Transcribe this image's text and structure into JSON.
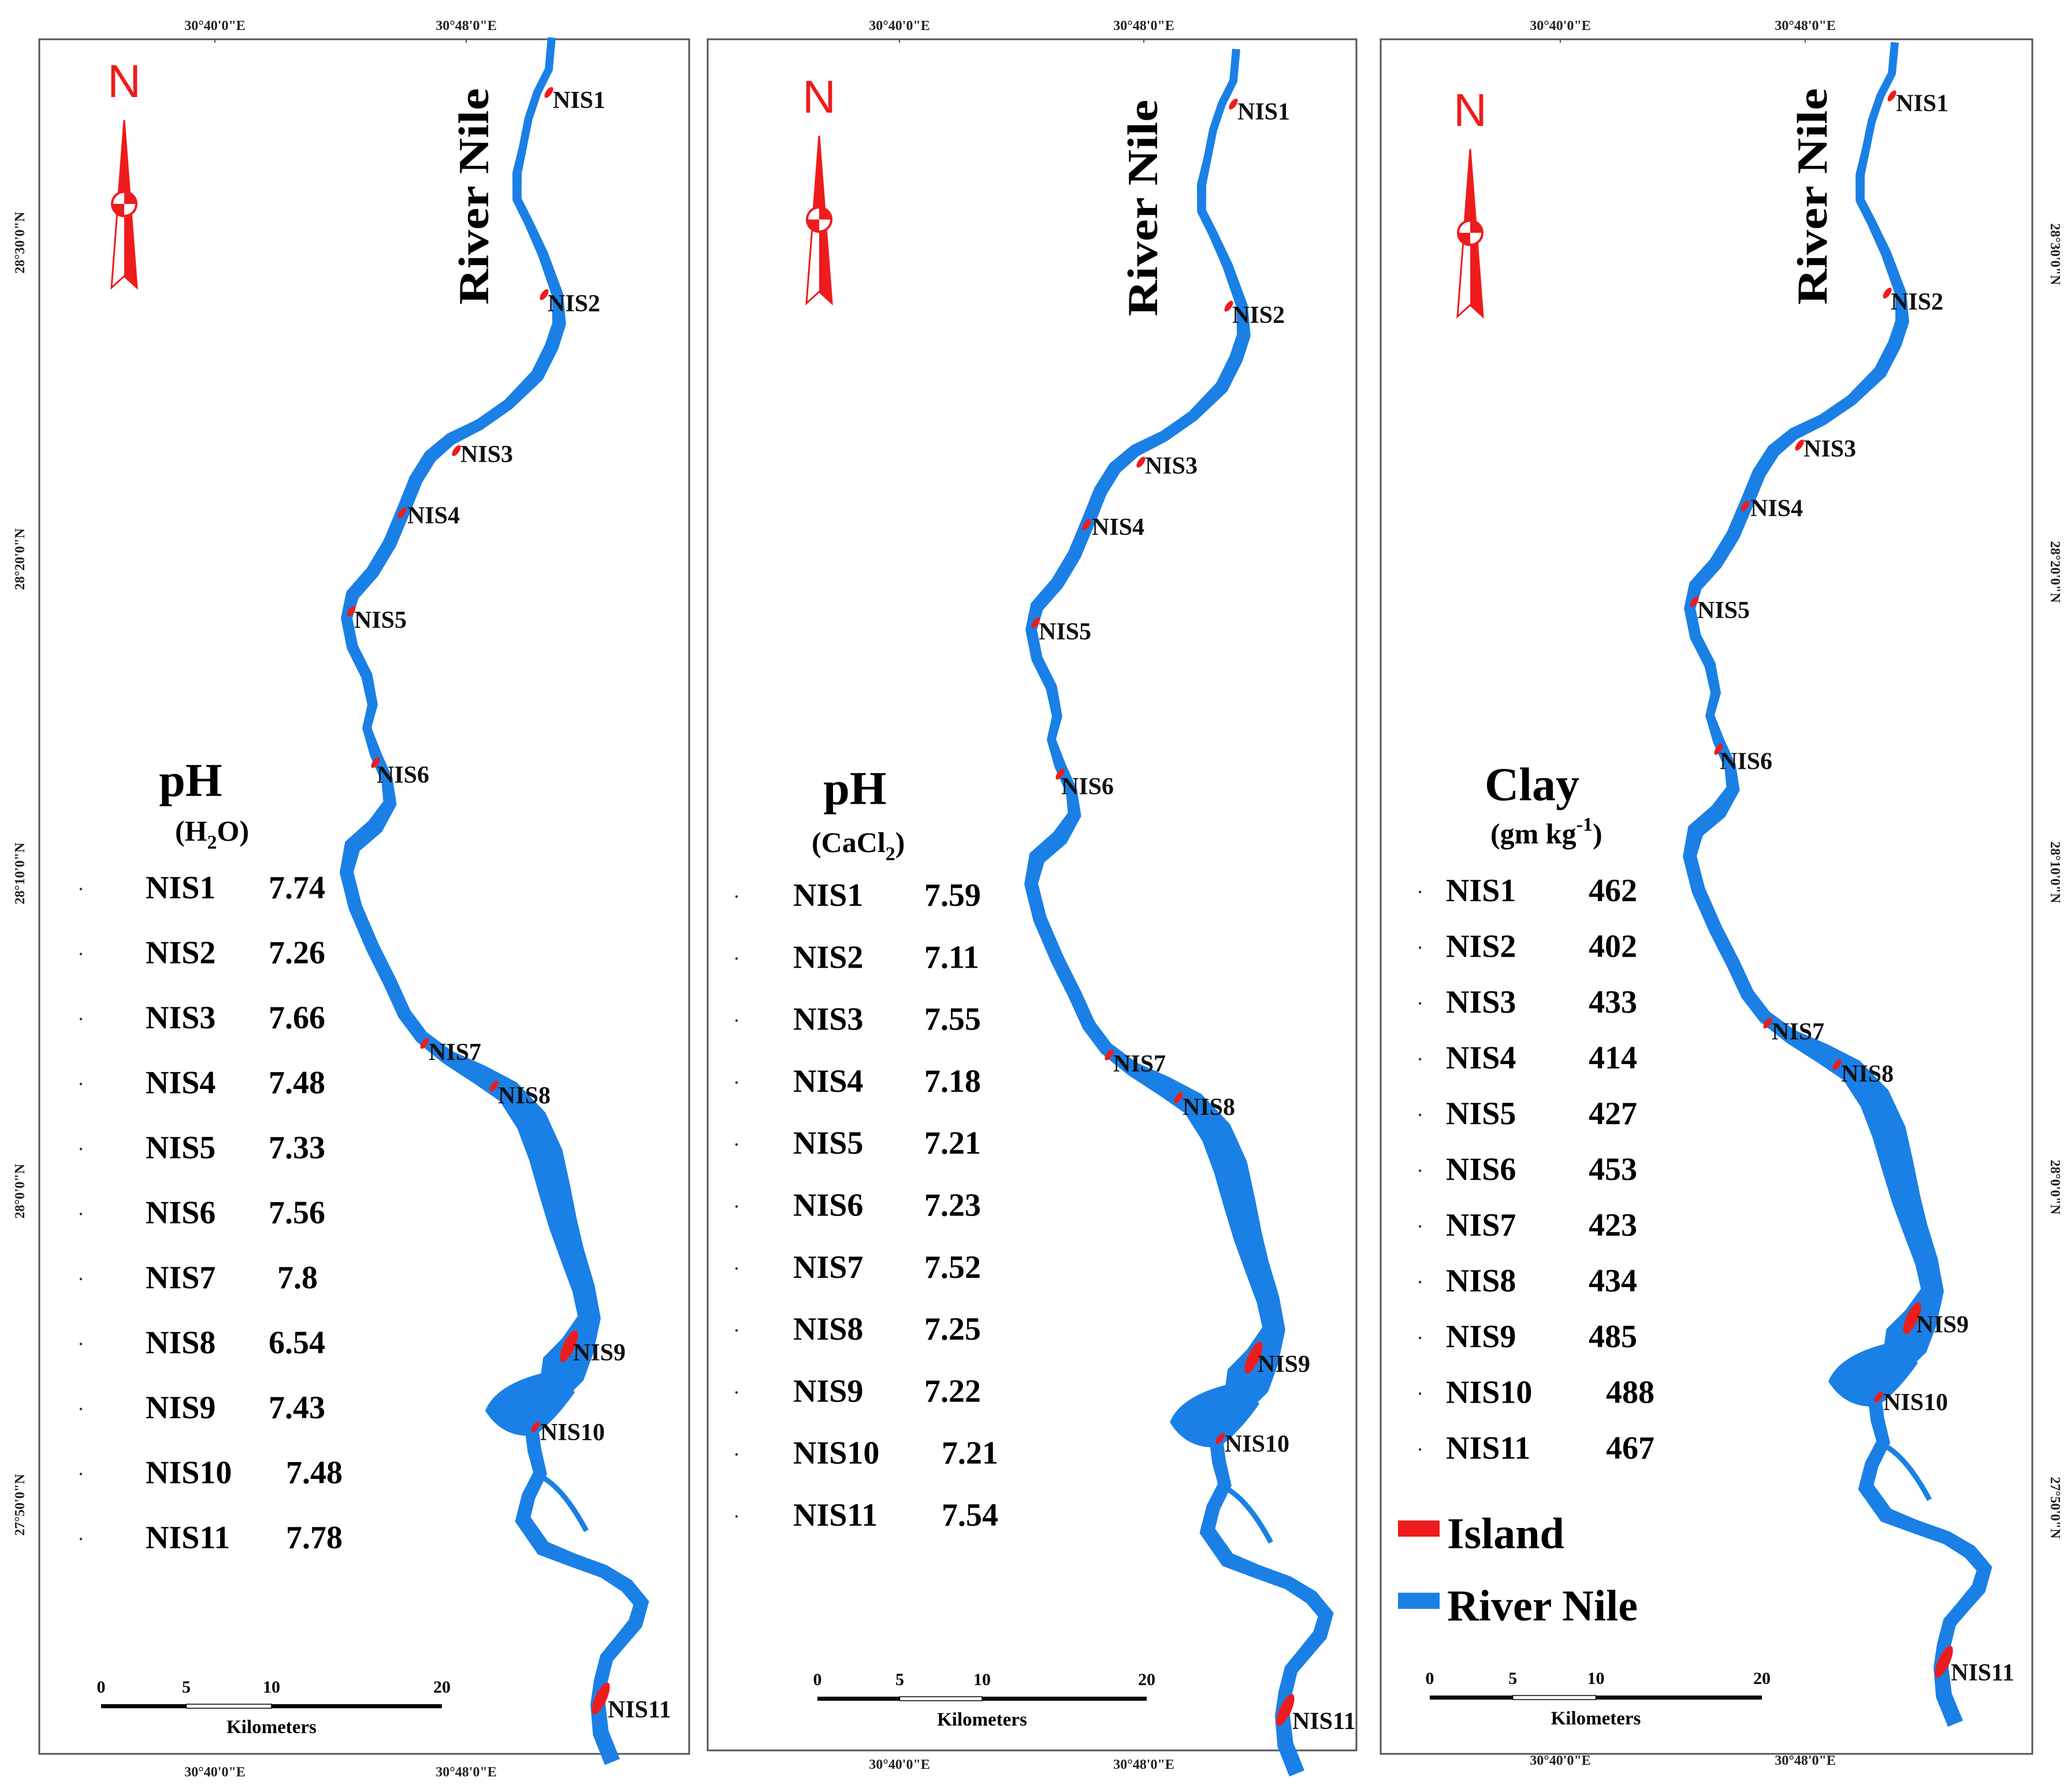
{
  "colors": {
    "river": "#1a80e6",
    "island": "#ee1c1c",
    "frame": "#555555",
    "text": "#000000"
  },
  "panels": [
    {
      "id": "ph-h2o",
      "top_coords": [
        "30°40'0\"E",
        "30°48'0\"E"
      ],
      "bottom_coords": [
        "30°40'0\"E",
        "30°48'0\"E"
      ],
      "lat_labels": [
        "28°30'0\"N",
        "28°20'0\"N",
        "28°10'0\"N",
        "28°0'0\"N",
        "27°50'0\"N"
      ],
      "north_label": "N",
      "river_label": "River Nile",
      "legend_title": "pH",
      "legend_subtitle_parts": [
        "(H",
        "2",
        "O)"
      ],
      "table": [
        {
          "site": "NIS1",
          "value": "7.74"
        },
        {
          "site": "NIS2",
          "value": "7.26"
        },
        {
          "site": "NIS3",
          "value": "7.66"
        },
        {
          "site": "NIS4",
          "value": "7.48"
        },
        {
          "site": "NIS5",
          "value": "7.33"
        },
        {
          "site": "NIS6",
          "value": "7.56"
        },
        {
          "site": "NIS7",
          "value": "7.8"
        },
        {
          "site": "NIS8",
          "value": "6.54"
        },
        {
          "site": "NIS9",
          "value": "7.43"
        },
        {
          "site": "NIS10",
          "value": "7.48"
        },
        {
          "site": "NIS11",
          "value": "7.78"
        }
      ],
      "site_labels": [
        "NIS1",
        "NIS2",
        "NIS3",
        "NIS4",
        "NIS5",
        "NIS6",
        "NIS7",
        "NIS8",
        "NIS9",
        "NIS10",
        "NIS11"
      ],
      "scale_ticks": [
        "0",
        "5",
        "10",
        "20"
      ],
      "scale_unit": "Kilometers"
    },
    {
      "id": "ph-cacl2",
      "top_coords": [
        "30°40'0\"E",
        "30°48'0\"E"
      ],
      "bottom_coords": [
        "30°40'0\"E",
        "30°48'0\"E"
      ],
      "lat_labels": [],
      "north_label": "N",
      "river_label": "River Nile",
      "legend_title": "pH",
      "legend_subtitle_parts": [
        "(CaCl",
        "2",
        ")"
      ],
      "table": [
        {
          "site": "NIS1",
          "value": "7.59"
        },
        {
          "site": "NIS2",
          "value": "7.11"
        },
        {
          "site": "NIS3",
          "value": "7.55"
        },
        {
          "site": "NIS4",
          "value": "7.18"
        },
        {
          "site": "NIS5",
          "value": "7.21"
        },
        {
          "site": "NIS6",
          "value": "7.23"
        },
        {
          "site": "NIS7",
          "value": "7.52"
        },
        {
          "site": "NIS8",
          "value": "7.25"
        },
        {
          "site": "NIS9",
          "value": "7.22"
        },
        {
          "site": "NIS10",
          "value": "7.21"
        },
        {
          "site": "NIS11",
          "value": "7.54"
        }
      ],
      "site_labels": [
        "NIS1",
        "NIS2",
        "NIS3",
        "NIS4",
        "NIS5",
        "NIS6",
        "NIS7",
        "NIS8",
        "NIS9",
        "NIS10",
        "NIS11"
      ],
      "scale_ticks": [
        "0",
        "5",
        "10",
        "20"
      ],
      "scale_unit": "Kilometers"
    },
    {
      "id": "clay",
      "top_coords": [
        "30°40'0\"E",
        "30°48'0\"E"
      ],
      "bottom_coords": [
        "30°40'0\"E",
        "30°48'0\"E"
      ],
      "lat_labels": [
        "28°30'0\"N",
        "28°20'0\"N",
        "28°10'0\"N",
        "28°0'0\"N",
        "27°50'0\"N"
      ],
      "north_label": "N",
      "river_label": "River Nile",
      "legend_title": "Clay",
      "legend_subtitle_parts": [
        "(gm kg",
        "-1",
        ")"
      ],
      "table": [
        {
          "site": "NIS1",
          "value": "462"
        },
        {
          "site": "NIS2",
          "value": "402"
        },
        {
          "site": "NIS3",
          "value": "433"
        },
        {
          "site": "NIS4",
          "value": "414"
        },
        {
          "site": "NIS5",
          "value": "427"
        },
        {
          "site": "NIS6",
          "value": "453"
        },
        {
          "site": "NIS7",
          "value": "423"
        },
        {
          "site": "NIS8",
          "value": "434"
        },
        {
          "site": "NIS9",
          "value": "485"
        },
        {
          "site": "NIS10",
          "value": "488"
        },
        {
          "site": "NIS11",
          "value": "467"
        }
      ],
      "site_labels": [
        "NIS1",
        "NIS2",
        "NIS3",
        "NIS4",
        "NIS5",
        "NIS6",
        "NIS7",
        "NIS8",
        "NIS9",
        "NIS10",
        "NIS11"
      ],
      "scale_ticks": [
        "0",
        "5",
        "10",
        "20"
      ],
      "scale_unit": "Kilometers",
      "legend_items": [
        "Island",
        "River Nile"
      ]
    }
  ]
}
